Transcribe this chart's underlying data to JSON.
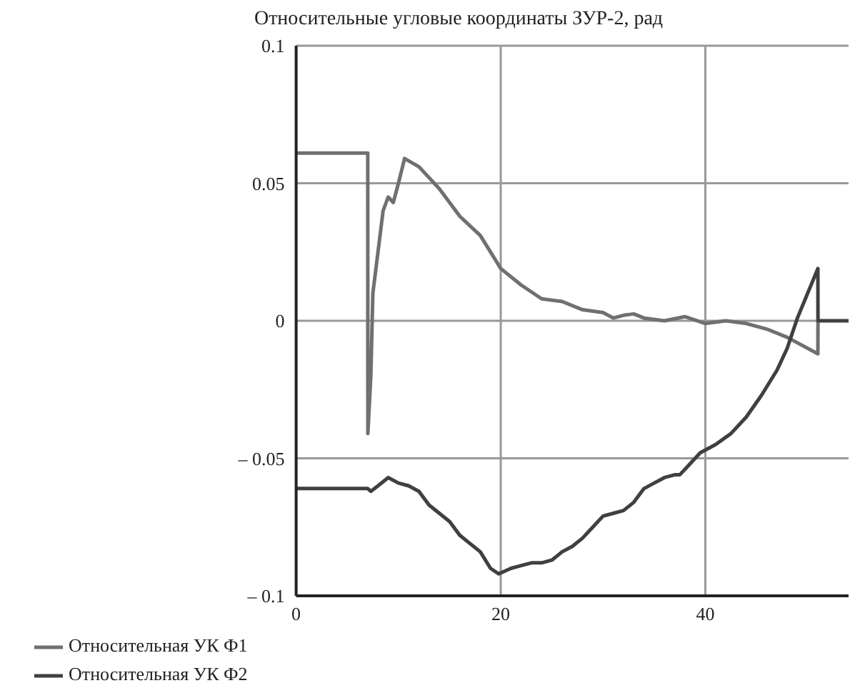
{
  "chart_data": {
    "type": "line",
    "title": "Относительные угловые координаты ЗУР-2, рад",
    "xlim": [
      0,
      54
    ],
    "xticks": [
      0,
      20,
      40
    ],
    "ylim": [
      -0.1,
      0.1
    ],
    "yticks": [
      {
        "value": -0.1,
        "label": "– 0.1"
      },
      {
        "value": -0.05,
        "label": "– 0.05"
      },
      0,
      0.05,
      0.1
    ],
    "grid": true,
    "legend": "bottom left",
    "marker": "none",
    "line_style": "solid",
    "series": [
      {
        "name": "Относительная УК Ф1",
        "color": "#707070",
        "x": [
          0,
          7,
          7.01,
          7.3,
          7.5,
          8,
          8.5,
          9,
          9.5,
          10,
          10.6,
          12,
          14,
          16,
          18,
          19.5,
          20,
          22,
          24,
          26,
          28,
          30,
          31,
          32,
          33,
          34,
          36,
          38,
          40,
          42,
          44,
          46,
          48,
          51,
          51.01
        ],
        "values": [
          0.061,
          0.061,
          -0.041,
          -0.02,
          0.01,
          0.025,
          0.04,
          0.045,
          0.043,
          0.05,
          0.059,
          0.056,
          0.048,
          0.038,
          0.031,
          0.022,
          0.019,
          0.013,
          0.008,
          0.007,
          0.004,
          0.003,
          0.001,
          0.002,
          0.0025,
          0.001,
          0,
          0.0015,
          -0.001,
          0,
          -0.001,
          -0.003,
          -0.006,
          -0.012,
          0
        ]
      },
      {
        "name": "Относительная УК Ф2",
        "color": "#404040",
        "x": [
          0,
          7,
          7.3,
          8,
          9,
          10,
          11,
          12,
          13,
          14,
          15,
          16,
          17,
          18,
          19,
          19.8,
          21,
          22,
          23,
          24,
          25,
          26,
          27,
          28,
          29,
          30,
          31,
          32,
          33,
          34,
          35,
          36,
          37,
          37.5,
          38.5,
          39.5,
          41,
          42.5,
          44,
          45.5,
          47,
          48,
          49,
          50,
          51,
          51.01,
          54
        ],
        "values": [
          -0.061,
          -0.061,
          -0.062,
          -0.06,
          -0.057,
          -0.059,
          -0.06,
          -0.062,
          -0.067,
          -0.07,
          -0.073,
          -0.078,
          -0.081,
          -0.084,
          -0.09,
          -0.092,
          -0.09,
          -0.089,
          -0.088,
          -0.088,
          -0.087,
          -0.084,
          -0.082,
          -0.079,
          -0.075,
          -0.071,
          -0.07,
          -0.069,
          -0.066,
          -0.061,
          -0.059,
          -0.057,
          -0.056,
          -0.056,
          -0.052,
          -0.048,
          -0.045,
          -0.041,
          -0.035,
          -0.027,
          -0.018,
          -0.01,
          0.001,
          0.01,
          0.019,
          0,
          0
        ]
      }
    ]
  }
}
